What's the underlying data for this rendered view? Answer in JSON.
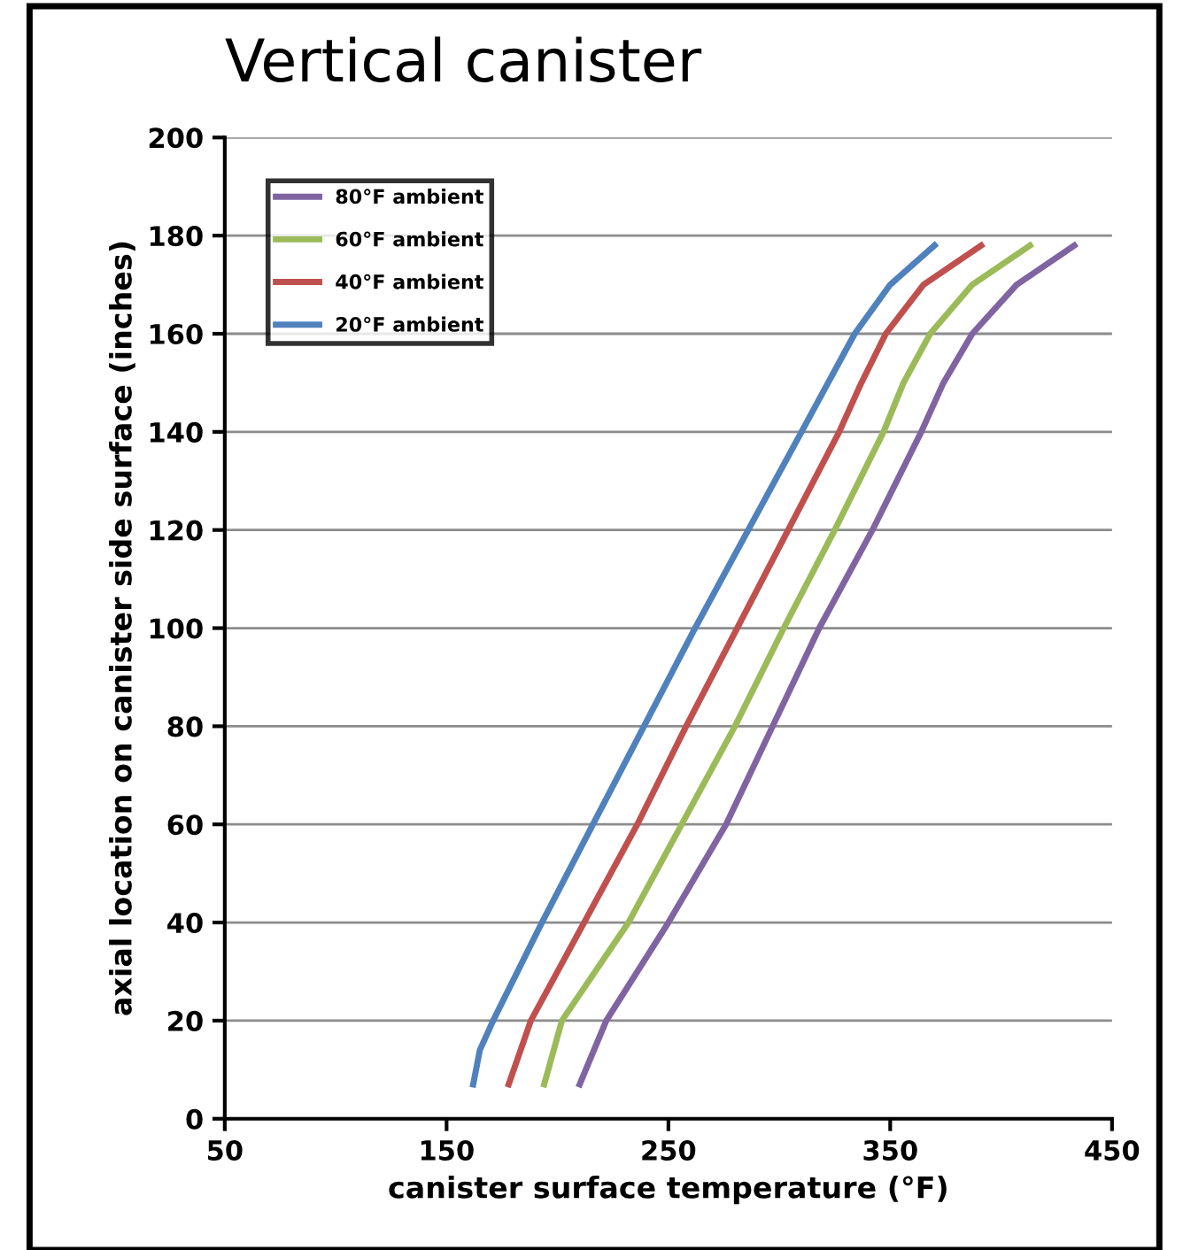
{
  "chart_data": {
    "type": "line",
    "title": "Vertical canister",
    "xlabel": "canister surface temperature (°F)",
    "ylabel": "axial location on canister side surface (inches)",
    "series": [
      {
        "name": "80°F ambient",
        "color": "#8064a2",
        "x": [
          210,
          222,
          250,
          276,
          297,
          318,
          342,
          364,
          374,
          387,
          407,
          433
        ],
        "values": [
          7,
          20,
          40,
          60,
          80,
          100,
          120,
          140,
          150,
          160,
          170,
          178
        ]
      },
      {
        "name": "60°F ambient",
        "color": "#9bbb59",
        "x": [
          194,
          202,
          232,
          256,
          280,
          302,
          325,
          347,
          356,
          368,
          387,
          413
        ],
        "values": [
          7,
          20,
          40,
          60,
          80,
          100,
          120,
          140,
          150,
          160,
          170,
          178
        ]
      },
      {
        "name": "40°F ambient",
        "color": "#c0504d",
        "x": [
          178,
          188,
          212,
          236,
          258,
          281,
          304,
          327,
          337,
          348,
          365,
          391
        ],
        "values": [
          7,
          20,
          40,
          60,
          80,
          100,
          120,
          140,
          150,
          160,
          170,
          178
        ]
      },
      {
        "name": "20°F ambient",
        "color": "#4f81bd",
        "x": [
          162,
          165,
          171,
          193,
          216,
          239,
          262,
          286,
          310,
          322,
          334,
          350,
          370
        ],
        "values": [
          7,
          14,
          20,
          40,
          60,
          80,
          100,
          120,
          140,
          150,
          160,
          170,
          178
        ]
      }
    ],
    "xlim": [
      50,
      450
    ],
    "xticks": [
      50,
      150,
      250,
      350,
      450
    ],
    "ylim": [
      0,
      200
    ],
    "yticks": [
      0,
      20,
      40,
      60,
      80,
      100,
      120,
      140,
      160,
      180,
      200
    ],
    "grid": "y",
    "legend": "top left",
    "marker": "none",
    "line_style": "solid"
  }
}
